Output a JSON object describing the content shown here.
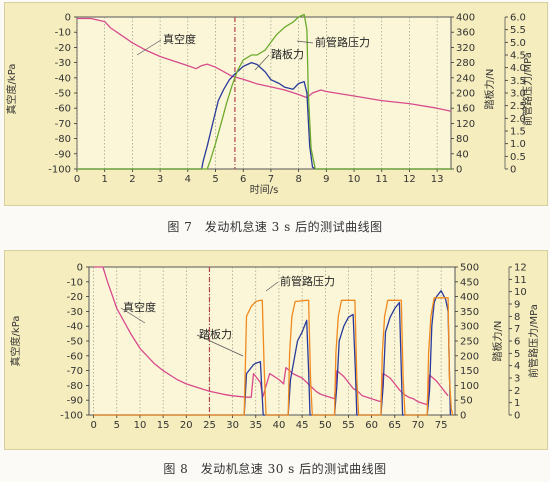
{
  "captions": {
    "fig7": "图 7　发动机怠速 3 s 后的测试曲线图",
    "fig8": "图 8　发动机怠速 30 s 后的测试曲线图"
  },
  "colors": {
    "vacuum": "#d74b8c",
    "pedal": "#2a3a9a",
    "pressure": "#6caa2c",
    "pressure_fig8": "#f08a1e",
    "marker": "#b2444a",
    "grid": "#8a8a7a"
  },
  "chart_data": [
    {
      "id": "fig7",
      "type": "line",
      "xlabel": "时间/s",
      "x_ticks": [
        0,
        1,
        2,
        3,
        4,
        5,
        6,
        7,
        8,
        9,
        10,
        11,
        12,
        13
      ],
      "xlim": [
        0,
        13.5
      ],
      "y_left": {
        "label": "真空度/kPa",
        "range": [
          -100,
          0
        ],
        "ticks": [
          0,
          -10,
          -20,
          -30,
          -40,
          -50,
          -60,
          -70,
          -80,
          -90,
          -100
        ]
      },
      "y_right1": {
        "label": "踏板力/N",
        "range": [
          0,
          400
        ],
        "ticks": [
          0,
          40,
          80,
          120,
          160,
          200,
          240,
          280,
          320,
          360,
          400
        ]
      },
      "y_right2": {
        "label": "前管路压力/MPa",
        "range": [
          0,
          6
        ],
        "ticks": [
          0,
          0.5,
          1.0,
          1.5,
          2.0,
          2.5,
          3.0,
          3.5,
          4.0,
          4.5,
          5.0,
          5.5,
          6.0
        ]
      },
      "marker_x": 5.7,
      "series": [
        {
          "name": "真空度",
          "axis": "left",
          "color": "vacuum",
          "x": [
            0,
            0.5,
            1.0,
            1.2,
            1.6,
            2.0,
            2.5,
            3.0,
            3.5,
            4.0,
            4.3,
            4.5,
            4.7,
            5.0,
            5.3,
            5.6,
            6.0,
            6.5,
            7.0,
            7.5,
            8.0,
            8.3,
            8.5,
            8.8,
            9.0,
            10.0,
            11.0,
            12.0,
            13.0,
            13.5
          ],
          "y": [
            -1,
            -1,
            -3,
            -7,
            -12,
            -17,
            -22,
            -26,
            -29,
            -32,
            -34,
            -32,
            -31,
            -33,
            -36,
            -39,
            -41,
            -44,
            -46,
            -48,
            -51,
            -53,
            -50,
            -48,
            -49,
            -52,
            -55,
            -57,
            -60,
            -62
          ]
        },
        {
          "name": "踏板力",
          "axis": "right1",
          "color": "pedal",
          "x": [
            0,
            4.5,
            4.55,
            4.7,
            4.9,
            5.1,
            5.3,
            5.5,
            5.7,
            6.0,
            6.3,
            6.5,
            6.8,
            7.0,
            7.3,
            7.5,
            7.8,
            8.0,
            8.2,
            8.3,
            8.4,
            8.5,
            8.6,
            13.5
          ],
          "y": [
            0,
            0,
            20,
            60,
            120,
            180,
            210,
            235,
            250,
            270,
            280,
            275,
            255,
            235,
            225,
            215,
            210,
            225,
            230,
            200,
            60,
            5,
            0,
            0
          ]
        },
        {
          "name": "前管路压力",
          "axis": "right2",
          "color": "pressure",
          "x": [
            0,
            4.7,
            4.8,
            5.0,
            5.2,
            5.4,
            5.6,
            5.8,
            6.0,
            6.3,
            6.5,
            6.8,
            7.0,
            7.2,
            7.5,
            7.8,
            8.0,
            8.2,
            8.3,
            8.35,
            8.45,
            8.6,
            13.5
          ],
          "y": [
            0,
            0,
            0.3,
            1.0,
            1.8,
            2.6,
            3.3,
            3.9,
            4.3,
            4.5,
            4.5,
            4.7,
            5.0,
            5.3,
            5.6,
            5.8,
            6.0,
            6.1,
            5.5,
            3.0,
            0.8,
            0,
            0
          ]
        }
      ],
      "annotations": [
        {
          "text": "真空度",
          "series": "真空度"
        },
        {
          "text": "踏板力",
          "series": "踏板力"
        },
        {
          "text": "前管路压力",
          "series": "前管路压力"
        }
      ]
    },
    {
      "id": "fig8",
      "type": "line",
      "x_ticks": [
        0,
        5,
        10,
        15,
        20,
        25,
        30,
        35,
        40,
        45,
        50,
        55,
        60,
        65,
        70,
        75
      ],
      "xlim": [
        -1,
        78
      ],
      "y_left": {
        "label": "真空度/kPa",
        "range": [
          -100,
          0
        ],
        "ticks": [
          0,
          -10,
          -20,
          -30,
          -40,
          -50,
          -60,
          -70,
          -80,
          -90,
          -100
        ]
      },
      "y_right1": {
        "label": "踏板力/N",
        "range": [
          0,
          500
        ],
        "ticks": [
          0,
          50,
          100,
          150,
          200,
          250,
          300,
          350,
          400,
          450,
          500
        ]
      },
      "y_right2": {
        "label": "前管路压力/MPa",
        "range": [
          0,
          12
        ],
        "ticks": [
          0,
          1,
          2,
          3,
          4,
          5,
          6,
          7,
          8,
          9,
          10,
          11,
          12
        ]
      },
      "marker_x": 25,
      "series": [
        {
          "name": "真空度",
          "axis": "left",
          "color": "vacuum",
          "x": [
            0,
            2,
            3,
            5,
            8,
            10,
            13,
            15,
            18,
            20,
            23,
            25,
            28,
            30,
            33,
            34,
            34.5,
            36,
            36.5,
            38,
            40,
            41,
            41.5,
            43,
            45,
            46,
            47,
            48,
            49,
            50,
            51,
            52,
            52.5,
            54,
            55,
            56,
            57,
            58,
            59,
            60,
            61,
            62,
            62.5,
            64,
            65,
            66,
            67,
            68,
            69,
            70,
            71,
            72,
            72.5,
            74,
            75,
            76,
            76.5
          ],
          "y": [
            0,
            0,
            -10,
            -28,
            -45,
            -55,
            -65,
            -70,
            -76,
            -79,
            -82,
            -84,
            -86,
            -87,
            -88,
            -88,
            -72,
            -78,
            -88,
            -72,
            -76,
            -79,
            -68,
            -72,
            -75,
            -78,
            -81,
            -84,
            -86,
            -87,
            -88,
            -89,
            -70,
            -74,
            -78,
            -82,
            -84,
            -87,
            -88,
            -89,
            -90,
            -91,
            -72,
            -75,
            -79,
            -83,
            -86,
            -88,
            -89,
            -91,
            -92,
            -93,
            -73,
            -77,
            -81,
            -85,
            -87
          ]
        },
        {
          "name": "踏板力",
          "axis": "right1",
          "color": "pedal",
          "x": [
            0,
            32.5,
            33,
            34,
            34.5,
            35,
            36,
            36.3,
            36.6,
            42,
            42.5,
            44,
            45,
            46,
            46.4,
            46.7,
            52,
            52.5,
            53,
            54,
            55,
            56,
            56.5,
            56.8,
            62,
            62.5,
            63,
            64,
            65,
            66,
            66.4,
            66.7,
            72,
            72.5,
            73,
            73.5,
            74,
            75,
            76,
            76.5,
            77
          ],
          "y": [
            0,
            0,
            140,
            160,
            170,
            175,
            180,
            90,
            0,
            0,
            120,
            250,
            280,
            320,
            150,
            0,
            0,
            100,
            250,
            300,
            330,
            340,
            150,
            0,
            0,
            100,
            280,
            330,
            360,
            380,
            150,
            0,
            0,
            80,
            300,
            380,
            400,
            420,
            390,
            350,
            0
          ]
        },
        {
          "name": "前管路压力",
          "axis": "right2",
          "color": "pressure_fig8",
          "x": [
            0,
            32.5,
            33,
            34,
            35,
            36,
            36.4,
            36.8,
            37.2,
            42,
            42.3,
            42.8,
            43.5,
            46,
            46.4,
            46.8,
            47.2,
            52,
            52.3,
            52.8,
            53.5,
            56,
            56.4,
            56.8,
            57.2,
            62,
            62.3,
            62.8,
            63.5,
            66,
            66.4,
            66.8,
            67.2,
            72,
            72.3,
            72.8,
            73.5,
            75,
            76.5,
            76.8,
            77.2,
            77.5
          ],
          "y": [
            0,
            0,
            8,
            8.8,
            9.2,
            9.3,
            9.3,
            4,
            0,
            0,
            5,
            8,
            9.2,
            9.3,
            9.3,
            3,
            0,
            0,
            5,
            8,
            9.3,
            9.3,
            9.3,
            3,
            0,
            0,
            5,
            8,
            9.3,
            9.3,
            9.3,
            3,
            0,
            0,
            5,
            8,
            9.5,
            9.5,
            9.5,
            3,
            0.5,
            0
          ]
        }
      ],
      "annotations": [
        {
          "text": "真空度",
          "series": "真空度"
        },
        {
          "text": "踏板力",
          "series": "踏板力"
        },
        {
          "text": "前管路压力",
          "series": "前管路压力"
        }
      ]
    }
  ]
}
